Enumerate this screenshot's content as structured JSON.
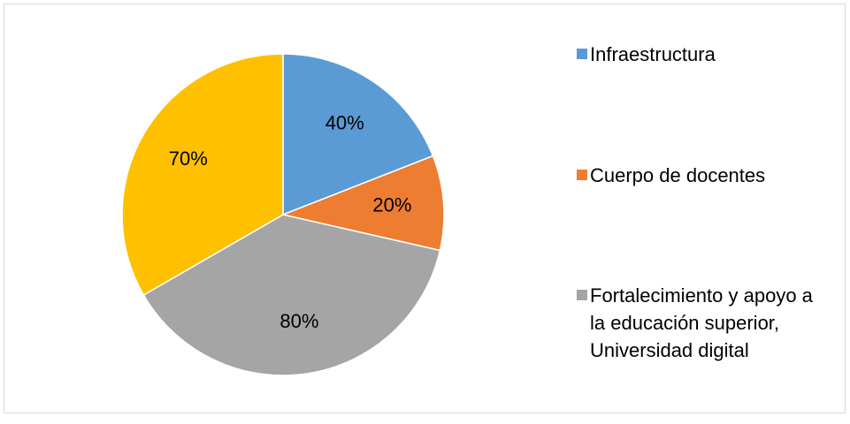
{
  "chart_data": {
    "type": "pie",
    "categories": [
      "Infraestructura",
      "Cuerpo de docentes",
      "Fortalecimiento y apoyo a la educación superior, Universidad digital",
      null
    ],
    "values": [
      40,
      20,
      80,
      70
    ],
    "value_labels": [
      "40%",
      "20%",
      "80%",
      "70%"
    ],
    "colors": [
      "#5b9bd5",
      "#ed7d31",
      "#a5a5a5",
      "#ffc000"
    ],
    "legend": "right"
  }
}
